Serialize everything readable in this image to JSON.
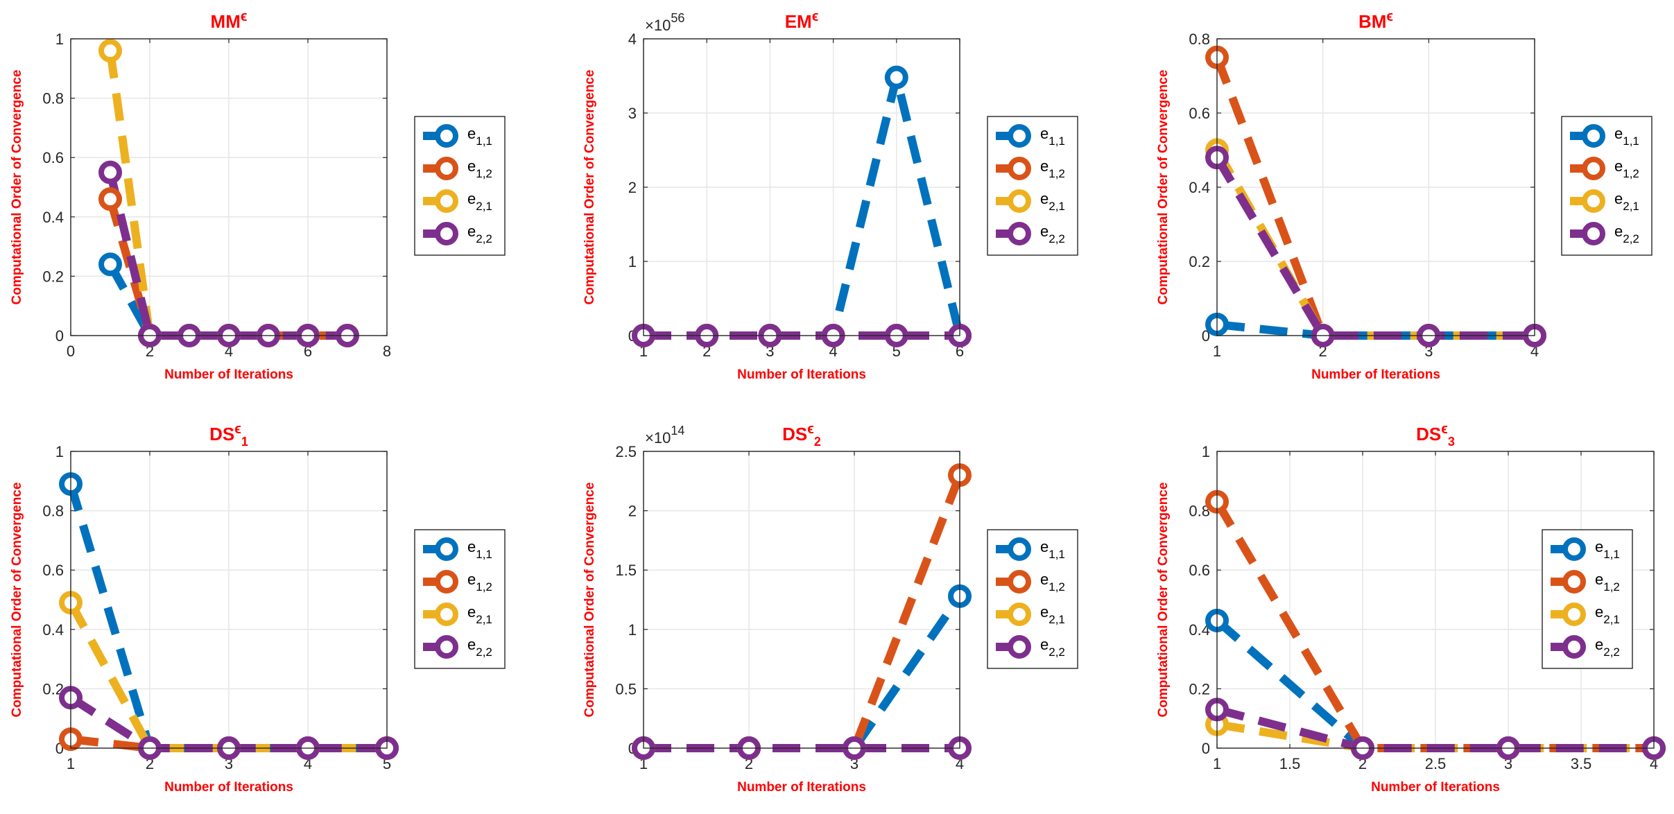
{
  "colors": {
    "e11": "#0072BD",
    "e12": "#D95319",
    "e21": "#EDB120",
    "e22": "#7E2F8E",
    "title": "#FF0000",
    "axis": "#262626",
    "grid": "#E6E6E6"
  },
  "legend_entries": [
    {
      "key": "e11",
      "base": "e",
      "sub": "1,1"
    },
    {
      "key": "e12",
      "base": "e",
      "sub": "1,2"
    },
    {
      "key": "e21",
      "base": "e",
      "sub": "2,1"
    },
    {
      "key": "e22",
      "base": "e",
      "sub": "2,2"
    }
  ],
  "chart_data": [
    {
      "type": "line",
      "title": {
        "base": "MM",
        "sup": "ϵ",
        "sub": ""
      },
      "xlabel": "Number of Iterations",
      "ylabel": "Computational Order of Convergence",
      "xlim": [
        0,
        8
      ],
      "ylim": [
        0,
        1
      ],
      "xticks": [
        "0",
        "2",
        "4",
        "6",
        "8"
      ],
      "xtick_values": [
        0,
        2,
        4,
        6,
        8
      ],
      "yticks": [
        "0",
        "0.2",
        "0.4",
        "0.6",
        "0.8",
        "1"
      ],
      "ytick_values": [
        0,
        0.2,
        0.4,
        0.6,
        0.8,
        1
      ],
      "exponent": "",
      "x": [
        1,
        2,
        3,
        4,
        5,
        6,
        7
      ],
      "series": [
        {
          "name": "e11",
          "values": [
            0.24,
            0,
            0,
            0,
            0,
            0,
            0
          ]
        },
        {
          "name": "e12",
          "values": [
            0.46,
            0,
            0,
            0,
            0,
            0,
            0
          ]
        },
        {
          "name": "e21",
          "values": [
            0.96,
            0,
            0,
            0,
            0,
            0,
            0
          ]
        },
        {
          "name": "e22",
          "values": [
            0.55,
            0,
            0,
            0,
            0,
            0,
            0
          ]
        }
      ]
    },
    {
      "type": "line",
      "title": {
        "base": "EM",
        "sup": "ϵ",
        "sub": ""
      },
      "xlabel": "Number of Iterations",
      "ylabel": "Computational Order of Convergence",
      "xlim": [
        1,
        6
      ],
      "ylim": [
        0,
        4
      ],
      "xticks": [
        "1",
        "2",
        "3",
        "4",
        "5",
        "6"
      ],
      "xtick_values": [
        1,
        2,
        3,
        4,
        5,
        6
      ],
      "yticks": [
        "0",
        "1",
        "2",
        "3",
        "4"
      ],
      "ytick_values": [
        0,
        1,
        2,
        3,
        4
      ],
      "exponent": "56",
      "x": [
        1,
        2,
        3,
        4,
        5,
        6
      ],
      "series": [
        {
          "name": "e11",
          "values": [
            0,
            0,
            0,
            0,
            3.48,
            0
          ]
        },
        {
          "name": "e12",
          "values": [
            0,
            0,
            0,
            0,
            0,
            0
          ]
        },
        {
          "name": "e21",
          "values": [
            0,
            0,
            0,
            0,
            0,
            0
          ]
        },
        {
          "name": "e22",
          "values": [
            0,
            0,
            0,
            0,
            0,
            0
          ]
        }
      ]
    },
    {
      "type": "line",
      "title": {
        "base": "BM",
        "sup": "ϵ",
        "sub": ""
      },
      "xlabel": "Number of Iterations",
      "ylabel": "Computational Order of Convergence",
      "xlim": [
        1,
        4
      ],
      "ylim": [
        0,
        0.8
      ],
      "xticks": [
        "1",
        "2",
        "3",
        "4"
      ],
      "xtick_values": [
        1,
        2,
        3,
        4
      ],
      "yticks": [
        "0",
        "0.2",
        "0.4",
        "0.6",
        "0.8"
      ],
      "ytick_values": [
        0,
        0.2,
        0.4,
        0.6,
        0.8
      ],
      "exponent": "",
      "x": [
        1,
        2,
        3,
        4
      ],
      "series": [
        {
          "name": "e11",
          "values": [
            0.03,
            0,
            0,
            0
          ]
        },
        {
          "name": "e12",
          "values": [
            0.75,
            0,
            0,
            0
          ]
        },
        {
          "name": "e21",
          "values": [
            0.5,
            0,
            0,
            0
          ]
        },
        {
          "name": "e22",
          "values": [
            0.48,
            0,
            0,
            0
          ]
        }
      ]
    },
    {
      "type": "line",
      "title": {
        "base": "DS",
        "sup": "ϵ",
        "sub": "1"
      },
      "xlabel": "Number of Iterations",
      "ylabel": "Computational Order of Convergence",
      "xlim": [
        1,
        5
      ],
      "ylim": [
        0,
        1
      ],
      "xticks": [
        "1",
        "2",
        "3",
        "4",
        "5"
      ],
      "xtick_values": [
        1,
        2,
        3,
        4,
        5
      ],
      "yticks": [
        "0",
        "0.2",
        "0.4",
        "0.6",
        "0.8",
        "1"
      ],
      "ytick_values": [
        0,
        0.2,
        0.4,
        0.6,
        0.8,
        1
      ],
      "exponent": "",
      "x": [
        1,
        2,
        3,
        4,
        5
      ],
      "series": [
        {
          "name": "e11",
          "values": [
            0.89,
            0,
            0,
            0,
            0
          ]
        },
        {
          "name": "e12",
          "values": [
            0.03,
            0,
            0,
            0,
            0
          ]
        },
        {
          "name": "e21",
          "values": [
            0.49,
            0,
            0,
            0,
            0
          ]
        },
        {
          "name": "e22",
          "values": [
            0.17,
            0,
            0,
            0,
            0
          ]
        }
      ]
    },
    {
      "type": "line",
      "title": {
        "base": "DS",
        "sup": "ϵ",
        "sub": "2"
      },
      "xlabel": "Number of Iterations",
      "ylabel": "Computational Order of Convergence",
      "xlim": [
        1,
        4
      ],
      "ylim": [
        0,
        2.5
      ],
      "xticks": [
        "1",
        "2",
        "3",
        "4"
      ],
      "xtick_values": [
        1,
        2,
        3,
        4
      ],
      "yticks": [
        "0",
        "0.5",
        "1",
        "1.5",
        "2",
        "2.5"
      ],
      "ytick_values": [
        0,
        0.5,
        1,
        1.5,
        2,
        2.5
      ],
      "exponent": "14",
      "x": [
        1,
        2,
        3,
        4
      ],
      "series": [
        {
          "name": "e11",
          "values": [
            0,
            0,
            0,
            1.28
          ]
        },
        {
          "name": "e12",
          "values": [
            0,
            0,
            0,
            2.3
          ]
        },
        {
          "name": "e21",
          "values": [
            0,
            0,
            0,
            0
          ]
        },
        {
          "name": "e22",
          "values": [
            0,
            0,
            0,
            0
          ]
        }
      ]
    },
    {
      "type": "line",
      "title": {
        "base": "DS",
        "sup": "ϵ",
        "sub": "3"
      },
      "xlabel": "Number of Iterations",
      "ylabel": "Computational Order of Convergence",
      "xlim": [
        1,
        4
      ],
      "ylim": [
        0,
        1
      ],
      "xticks": [
        "1",
        "1.5",
        "2",
        "2.5",
        "3",
        "3.5",
        "4"
      ],
      "xtick_values": [
        1,
        1.5,
        2,
        2.5,
        3,
        3.5,
        4
      ],
      "yticks": [
        "0",
        "0.2",
        "0.4",
        "0.6",
        "0.8",
        "1"
      ],
      "ytick_values": [
        0,
        0.2,
        0.4,
        0.6,
        0.8,
        1
      ],
      "exponent": "",
      "x": [
        1,
        2,
        3,
        4
      ],
      "series": [
        {
          "name": "e11",
          "values": [
            0.43,
            0,
            0,
            0
          ]
        },
        {
          "name": "e12",
          "values": [
            0.83,
            0,
            0,
            0
          ]
        },
        {
          "name": "e21",
          "values": [
            0.08,
            0,
            0,
            0
          ]
        },
        {
          "name": "e22",
          "values": [
            0.13,
            0,
            0,
            0
          ]
        }
      ]
    }
  ]
}
